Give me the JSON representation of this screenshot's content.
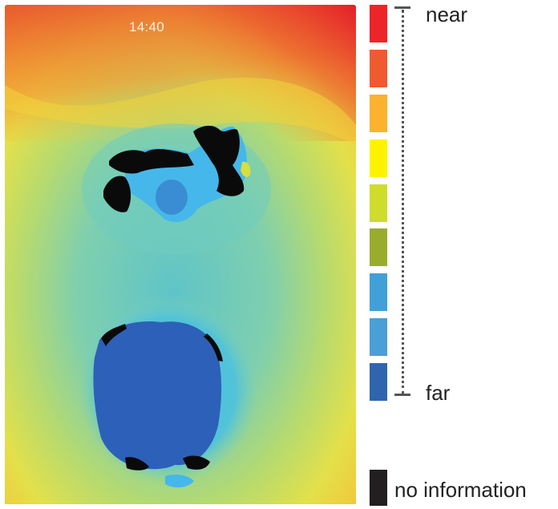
{
  "screen": {
    "status_time": "14:40"
  },
  "legend": {
    "near_label": "near",
    "far_label": "far",
    "no_information_label": "no information",
    "swatches": [
      {
        "id": "near-red",
        "color": "#ee2528"
      },
      {
        "id": "orange",
        "color": "#ef5b2f"
      },
      {
        "id": "amber",
        "color": "#fbb22e"
      },
      {
        "id": "yellow",
        "color": "#fff200"
      },
      {
        "id": "yellow-green",
        "color": "#cfdb2d"
      },
      {
        "id": "olive",
        "color": "#9aac2b"
      },
      {
        "id": "light-blue",
        "color": "#41a0d8"
      },
      {
        "id": "light-blue-2",
        "color": "#4a9fd8"
      },
      {
        "id": "far-blue",
        "color": "#2e65ad"
      }
    ],
    "no_information_color": "#231f20"
  }
}
